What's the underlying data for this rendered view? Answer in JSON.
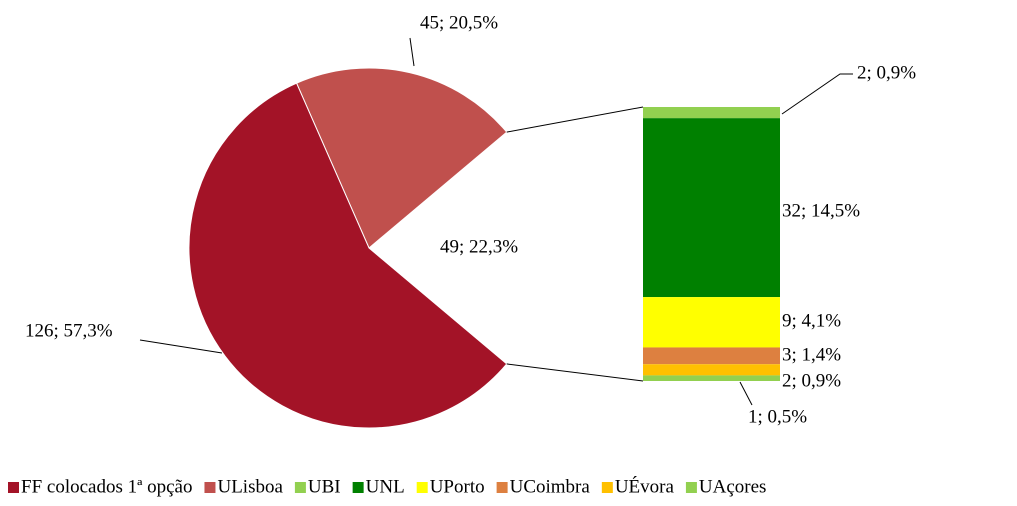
{
  "chart_data": {
    "type": "bar-of-pie",
    "pie": {
      "categories": [
        "FF colocados 1ª opção",
        "ULisboa",
        null
      ],
      "values": [
        126,
        45,
        49
      ],
      "value_labels": [
        "126; 57,3%",
        "45; 20,5%",
        "49; 22,3%"
      ],
      "colors": [
        "#a31327",
        "#c0504d",
        null
      ]
    },
    "bar": {
      "categories": [
        "UBI",
        "UNL",
        "UPorto",
        "UCoimbra",
        "UÉvora",
        "UAçores"
      ],
      "values": [
        2,
        32,
        9,
        3,
        2,
        1
      ],
      "value_labels": [
        "2; 0,9%",
        "32; 14,5%",
        "9; 4,1%",
        "3; 1,4%",
        "2; 0,9%",
        "1; 0,5%"
      ],
      "colors": [
        "#92d050",
        "#008000",
        "#ffff00",
        "#dd8040",
        "#ffc000",
        "#92d050"
      ]
    }
  }
}
